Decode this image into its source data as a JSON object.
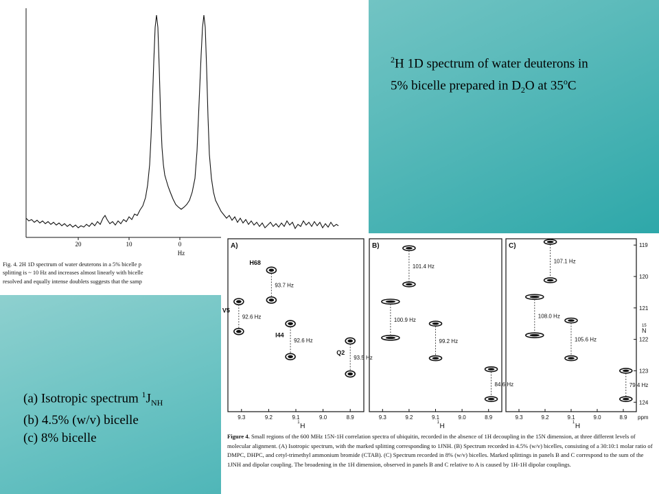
{
  "slide": {
    "title_note": {
      "line1_sup": "2",
      "line1_text": "H 1D spectrum of water deuterons in",
      "line2_a": "5% bicelle prepared in D",
      "line2_sub": "2",
      "line2_b": "O at 35",
      "line2_sup": "o",
      "line2_c": "C"
    },
    "legend": {
      "a_text": "(a) Isotropic spectrum ",
      "a_sup": "1",
      "a_j": "J",
      "a_sub": "NH",
      "b_text": "(b) 4.5% (w/v) bicelle",
      "c_text": "(c) 8% bicelle"
    }
  },
  "fig4": {
    "axis_ticks": [
      "20",
      "10",
      "0"
    ],
    "axis_unit": "Hz",
    "caption_lines": [
      "Fig. 4. 2H 1D spectrum of water deuterons in a 5% bicelle p",
      "splitting is ~ 10 Hz and increases almost linearly with bicelle",
      "resolved and equally intense doublets suggests that the samp"
    ],
    "chart_data": {
      "type": "line",
      "title": "",
      "xlabel": "Hz",
      "ylabel": "",
      "x_ticks": [
        20,
        10,
        0
      ],
      "x_reversed": true,
      "peaks_hz": [
        5,
        -5
      ],
      "doublet_splitting_hz": 10,
      "grid": false
    }
  },
  "fig_uby": {
    "panels": [
      {
        "label": "A)",
        "residues": [
          "H68",
          "V5",
          "I44",
          "Q2"
        ],
        "splittings": [
          "93.7 Hz",
          "92.6 Hz",
          "92.6 Hz",
          "93.5 Hz"
        ]
      },
      {
        "label": "B)",
        "splittings": [
          "101.4 Hz",
          "100.9 Hz",
          "99.2 Hz",
          "84.6 Hz"
        ]
      },
      {
        "label": "C)",
        "splittings": [
          "107.1 Hz",
          "108.0 Hz",
          "105.6 Hz",
          "79.4 Hz"
        ]
      }
    ],
    "x_ticks": [
      "9.3",
      "9.2",
      "9.1",
      "9.0",
      "8.9"
    ],
    "x_axis_label": "1H",
    "x_unit": "ppm",
    "y_ticks": [
      "119",
      "120",
      "121",
      "122",
      "123",
      "124"
    ],
    "y_axis_label": "15N",
    "chart_data": {
      "type": "scatter",
      "title": "",
      "xlabel": "1H",
      "ylabel": "15N",
      "xlim": [
        9.35,
        8.85
      ],
      "ylim": [
        118.8,
        124.3
      ],
      "series": [
        {
          "name": "A)",
          "peaks": [
            {
              "x": 9.19,
              "y": 119.8
            },
            {
              "x": 9.19,
              "y": 120.75
            },
            {
              "x": 9.31,
              "y": 120.8
            },
            {
              "x": 9.31,
              "y": 121.75
            },
            {
              "x": 9.12,
              "y": 121.5
            },
            {
              "x": 9.12,
              "y": 122.55
            },
            {
              "x": 8.9,
              "y": 122.05
            },
            {
              "x": 8.9,
              "y": 123.1
            }
          ]
        },
        {
          "name": "B)",
          "peaks": [
            {
              "x": 9.2,
              "y": 119.1
            },
            {
              "x": 9.2,
              "y": 120.25
            },
            {
              "x": 9.27,
              "y": 120.8
            },
            {
              "x": 9.27,
              "y": 121.95
            },
            {
              "x": 9.1,
              "y": 121.5
            },
            {
              "x": 9.1,
              "y": 122.6
            },
            {
              "x": 8.89,
              "y": 122.95
            },
            {
              "x": 8.89,
              "y": 123.9
            }
          ]
        },
        {
          "name": "C)",
          "peaks": [
            {
              "x": 9.18,
              "y": 118.9
            },
            {
              "x": 9.18,
              "y": 120.12
            },
            {
              "x": 9.24,
              "y": 120.65
            },
            {
              "x": 9.24,
              "y": 121.87
            },
            {
              "x": 9.1,
              "y": 121.4
            },
            {
              "x": 9.1,
              "y": 122.6
            },
            {
              "x": 8.89,
              "y": 123.0
            },
            {
              "x": 8.89,
              "y": 123.9
            }
          ]
        }
      ]
    },
    "caption": {
      "lead": "Figure 4.",
      "body": "Small regions of the 600 MHz 15N-1H correlation spectra of ubiquitin, recorded in the absence of 1H decoupling in the 15N dimension, at three different levels of molecular alignment. (A) Isotropic spectrum, with the marked splitting corresponding to 1JNH. (B) Spectrum recorded in 4.5% (w/v) bicelles, consisting of a 30:10:1 molar ratio of DMPC, DHPC, and cetyl-trimethyl ammonium bromide (CTAB). (C) Spectrum recorded in 8% (w/v) bicelles. Marked splittings in panels B and C correspond to the sum of the 1JNH and dipolar coupling. The broadening in the 1H dimension, observed in panels B and C relative to A is caused by 1H-1H dipolar couplings."
    }
  }
}
